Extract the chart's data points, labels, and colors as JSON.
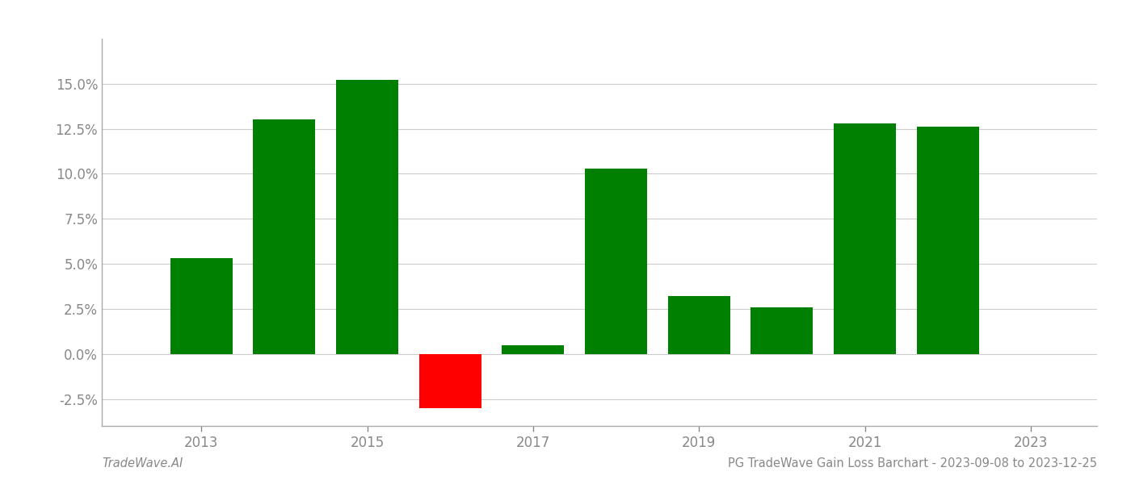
{
  "years": [
    2013,
    2014,
    2015,
    2016,
    2017,
    2018,
    2019,
    2020,
    2021,
    2022
  ],
  "values": [
    0.053,
    0.13,
    0.152,
    -0.03,
    0.005,
    0.103,
    0.032,
    0.026,
    0.128,
    0.126
  ],
  "bar_colors": [
    "#008000",
    "#008000",
    "#008000",
    "#ff0000",
    "#008000",
    "#008000",
    "#008000",
    "#008000",
    "#008000",
    "#008000"
  ],
  "title": "PG TradeWave Gain Loss Barchart - 2023-09-08 to 2023-12-25",
  "footer_left": "TradeWave.AI",
  "ytick_values": [
    -0.025,
    0.0,
    0.025,
    0.05,
    0.075,
    0.1,
    0.125,
    0.15
  ],
  "xtick_values": [
    2013,
    2015,
    2017,
    2019,
    2021,
    2023
  ],
  "ylim": [
    -0.04,
    0.175
  ],
  "xlim": [
    2011.8,
    2023.8
  ],
  "background_color": "#ffffff",
  "grid_color": "#cccccc",
  "bar_width": 0.75,
  "spine_color": "#aaaaaa",
  "tick_color": "#888888",
  "title_fontsize": 10.5,
  "footer_fontsize": 10.5,
  "axis_fontsize": 12
}
